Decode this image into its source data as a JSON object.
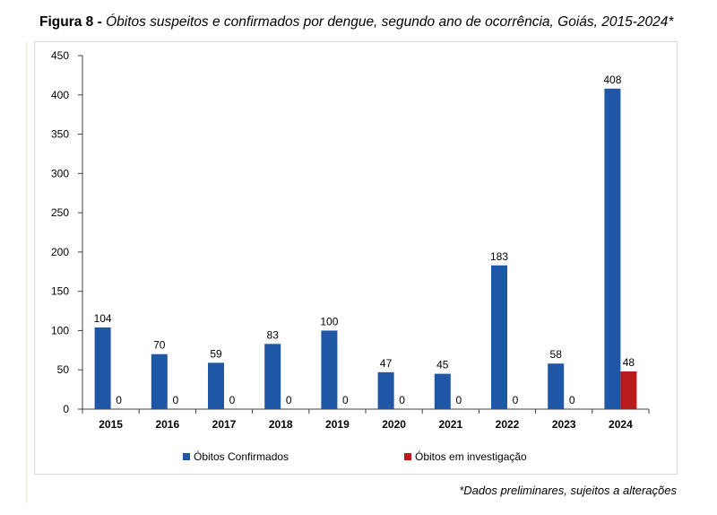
{
  "figure": {
    "title_lead": "Figura 8 -",
    "title_rest": "Óbitos suspeitos e confirmados por dengue, segundo ano de ocorrência, Goiás, 2015-2024*",
    "footnote": "*Dados preliminares, sujeitos a alterações"
  },
  "colors": {
    "confirmed": "#1f56a6",
    "investigation": "#b81b1b",
    "axis": "#404040"
  },
  "chart_data": {
    "type": "bar",
    "title": "Óbitos suspeitos e confirmados por dengue, segundo ano de ocorrência, Goiás, 2015-2024*",
    "categories": [
      "2015",
      "2016",
      "2017",
      "2018",
      "2019",
      "2020",
      "2021",
      "2022",
      "2023",
      "2024"
    ],
    "series": [
      {
        "name": "Óbitos Confirmados",
        "values": [
          104,
          70,
          59,
          83,
          100,
          47,
          45,
          183,
          58,
          408
        ]
      },
      {
        "name": "Óbitos em investigação",
        "values": [
          0,
          0,
          0,
          0,
          0,
          0,
          0,
          0,
          0,
          48
        ]
      }
    ],
    "ylim": [
      0,
      450
    ],
    "yticks": [
      0,
      50,
      100,
      150,
      200,
      250,
      300,
      350,
      400,
      450
    ],
    "grid": false,
    "legend": "bottom"
  }
}
